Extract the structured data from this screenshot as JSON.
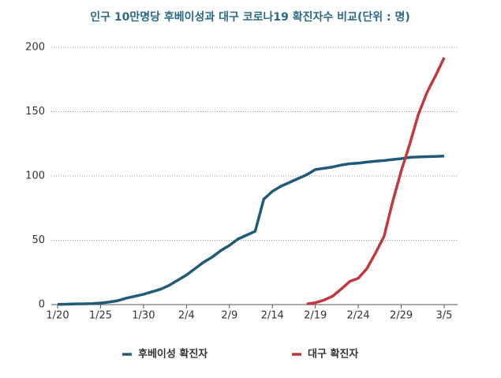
{
  "chart_data": {
    "type": "line",
    "title": "인구 10만명당 후베이성과 대구 코로나19 확진자수 비교(단위 : 명)",
    "categories": [
      "1/20",
      null,
      null,
      null,
      null,
      "1/25",
      null,
      null,
      null,
      null,
      "1/30",
      null,
      null,
      null,
      null,
      "2/4",
      null,
      null,
      null,
      null,
      "2/9",
      null,
      null,
      null,
      null,
      "2/14",
      null,
      null,
      null,
      null,
      "2/19",
      null,
      null,
      null,
      null,
      "2/24",
      null,
      null,
      null,
      null,
      "2/29",
      null,
      null,
      null,
      null,
      "3/5"
    ],
    "series": [
      {
        "name": "후베이성 확진자",
        "color": "#1f5a78",
        "values": [
          0.2,
          0.3,
          0.5,
          0.6,
          0.8,
          1.2,
          2,
          3,
          5,
          6.5,
          8,
          10,
          12,
          15,
          19,
          23,
          28,
          33,
          37,
          42,
          46,
          51,
          54,
          57,
          82,
          88,
          92,
          95,
          98,
          101,
          105,
          106,
          107,
          108.5,
          109.5,
          110,
          110.8,
          111.5,
          112,
          112.8,
          113.5,
          114.5,
          114.8,
          115,
          115.2,
          115.5
        ]
      },
      {
        "name": "대구 확진자",
        "color": "#c0393f",
        "values": [
          null,
          null,
          null,
          null,
          null,
          null,
          null,
          null,
          null,
          null,
          null,
          null,
          null,
          null,
          null,
          null,
          null,
          null,
          null,
          null,
          null,
          null,
          null,
          null,
          null,
          null,
          null,
          null,
          null,
          0.5,
          1.5,
          3.5,
          6.5,
          12,
          18,
          20.5,
          28,
          40,
          53,
          80,
          104,
          125,
          148,
          165,
          178,
          192
        ]
      }
    ],
    "ylim": [
      0,
      200
    ],
    "yticks": [
      0,
      50,
      100,
      150,
      200
    ],
    "grid": true
  }
}
